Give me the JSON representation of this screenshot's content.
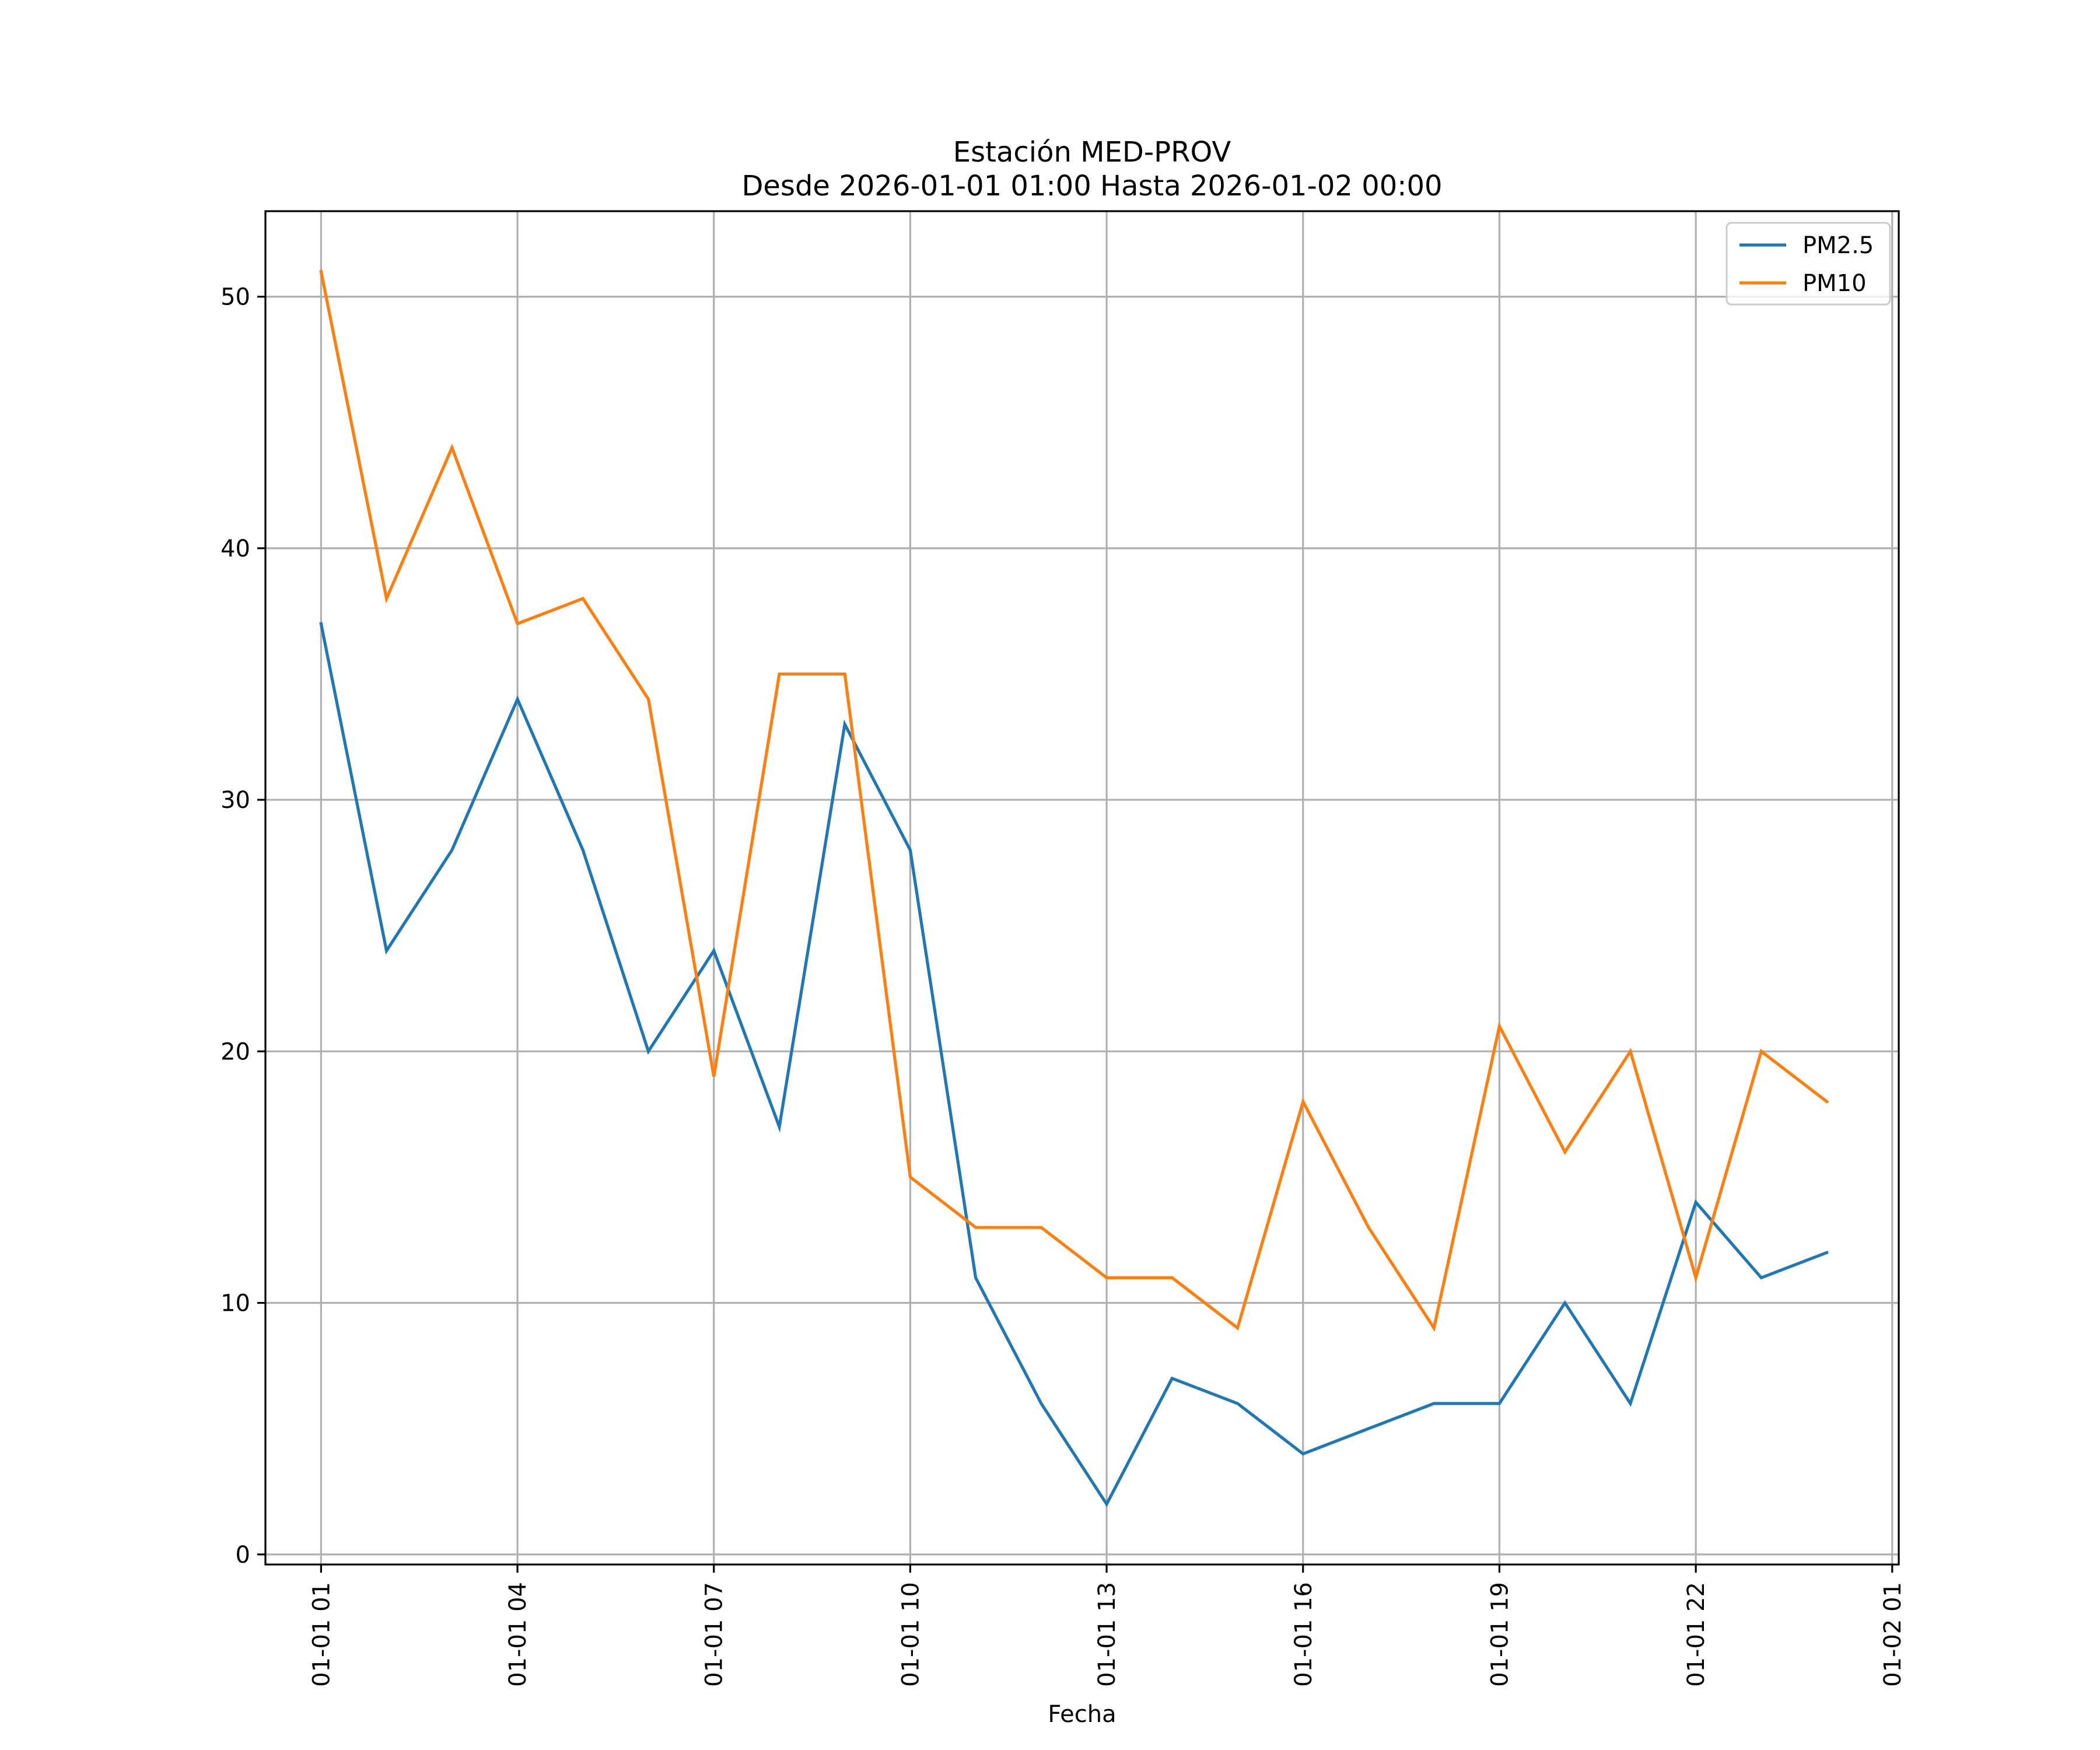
{
  "chart_data": {
    "type": "line",
    "title": "Estación MED-PROV",
    "subtitle": "Desde 2026-01-01 01:00 Hasta 2026-01-02 00:00",
    "xlabel": "Fecha",
    "ylabel": "",
    "x": [
      "2026-01-01 01:00",
      "2026-01-01 02:00",
      "2026-01-01 03:00",
      "2026-01-01 04:00",
      "2026-01-01 05:00",
      "2026-01-01 06:00",
      "2026-01-01 07:00",
      "2026-01-01 08:00",
      "2026-01-01 09:00",
      "2026-01-01 10:00",
      "2026-01-01 11:00",
      "2026-01-01 12:00",
      "2026-01-01 13:00",
      "2026-01-01 14:00",
      "2026-01-01 15:00",
      "2026-01-01 16:00",
      "2026-01-01 17:00",
      "2026-01-01 18:00",
      "2026-01-01 19:00",
      "2026-01-01 20:00",
      "2026-01-01 21:00",
      "2026-01-01 22:00",
      "2026-01-01 23:00",
      "2026-01-02 00:00"
    ],
    "x_ticks": [
      "2026-01-01 01:00",
      "2026-01-01 04:00",
      "2026-01-01 07:00",
      "2026-01-01 10:00",
      "2026-01-01 13:00",
      "2026-01-01 16:00",
      "2026-01-01 19:00",
      "2026-01-01 22:00",
      "2026-01-02 01:00"
    ],
    "x_tick_labels": [
      "01-01 01",
      "01-01 04",
      "01-01 07",
      "01-01 10",
      "01-01 13",
      "01-01 16",
      "01-01 19",
      "01-01 22",
      "01-02 01"
    ],
    "xlim": [
      "2026-01-01 00:09",
      "2026-01-02 01:06"
    ],
    "y_ticks": [
      0,
      10,
      20,
      30,
      40,
      50
    ],
    "ylim": [
      -0.4,
      53.4
    ],
    "grid": true,
    "legend_position": "top-right",
    "series": [
      {
        "name": "PM2.5",
        "color": "#1f77b4",
        "values": [
          37,
          24,
          28,
          34,
          28,
          20,
          24,
          17,
          33,
          28,
          11,
          6,
          2,
          7,
          6,
          4,
          5,
          6,
          6,
          10,
          6,
          14,
          11,
          12
        ]
      },
      {
        "name": "PM10",
        "color": "#ff7f0e",
        "values": [
          51,
          38,
          44,
          37,
          38,
          34,
          19,
          35,
          35,
          15,
          13,
          13,
          11,
          11,
          9,
          18,
          13,
          9,
          21,
          16,
          20,
          11,
          20,
          18
        ]
      }
    ]
  }
}
